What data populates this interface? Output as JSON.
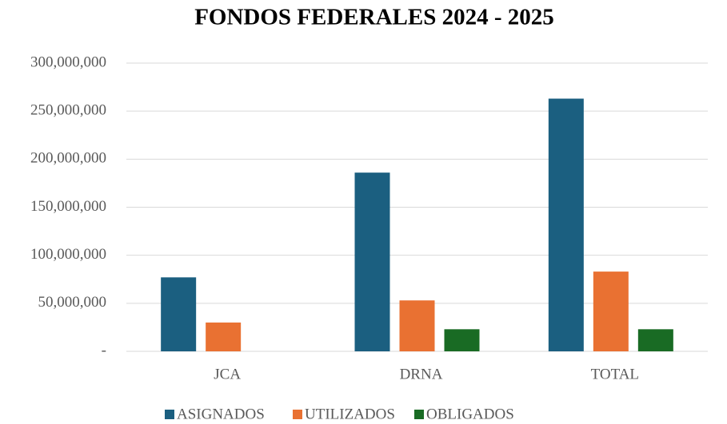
{
  "chart_data": {
    "type": "bar",
    "title": "FONDOS FEDERALES 2024 - 2025",
    "categories": [
      "JCA",
      "DRNA",
      "TOTAL"
    ],
    "series": [
      {
        "name": "ASIGNADOS",
        "color": "#1b5f80",
        "values": [
          77000000,
          186000000,
          263000000
        ]
      },
      {
        "name": "UTILIZADOS",
        "color": "#e97132",
        "values": [
          30000000,
          53000000,
          83000000
        ]
      },
      {
        "name": "OBLIGADOS",
        "color": "#196b24",
        "values": [
          0,
          23000000,
          23000000
        ]
      }
    ],
    "ylim": [
      0,
      300000000
    ],
    "yticks": [
      {
        "value": 0,
        "label": "-"
      },
      {
        "value": 50000000,
        "label": "50,000,000"
      },
      {
        "value": 100000000,
        "label": "100,000,000"
      },
      {
        "value": 150000000,
        "label": "150,000,000"
      },
      {
        "value": 200000000,
        "label": "200,000,000"
      },
      {
        "value": 250000000,
        "label": "250,000,000"
      },
      {
        "value": 300000000,
        "label": "300,000,000"
      }
    ],
    "grid": true,
    "legend": "bottom"
  }
}
